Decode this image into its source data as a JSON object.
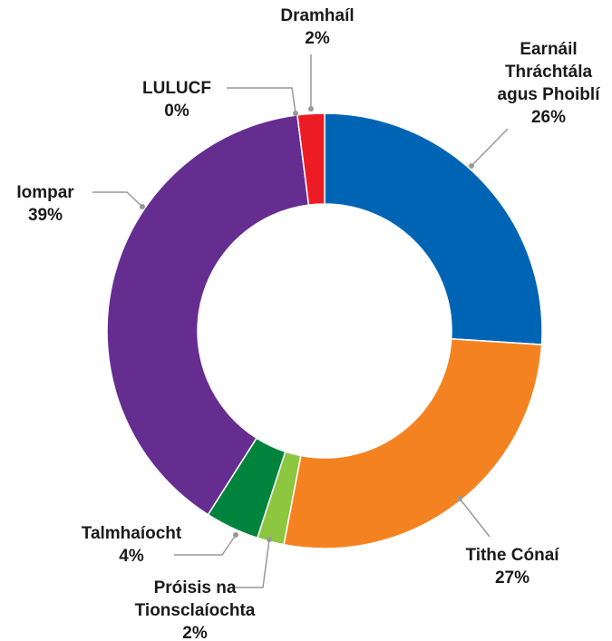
{
  "chart_data": {
    "type": "donut",
    "categories": [
      "Earnáil Thráchtála agus Phoiblí",
      "Tithe Cónaí",
      "Próisis na Tionsclaíochta",
      "Talmhaíocht",
      "Iompar",
      "LULUCF",
      "Dramhaíl"
    ],
    "values": [
      26,
      27,
      2,
      4,
      39,
      0,
      2
    ],
    "value_labels": [
      "26%",
      "27%",
      "2%",
      "4%",
      "39%",
      "0%",
      "2%"
    ],
    "colors": [
      "#0064b4",
      "#f58220",
      "#8dc63f",
      "#00843d",
      "#662d91",
      "#9a9a9a",
      "#ed1c24"
    ]
  }
}
